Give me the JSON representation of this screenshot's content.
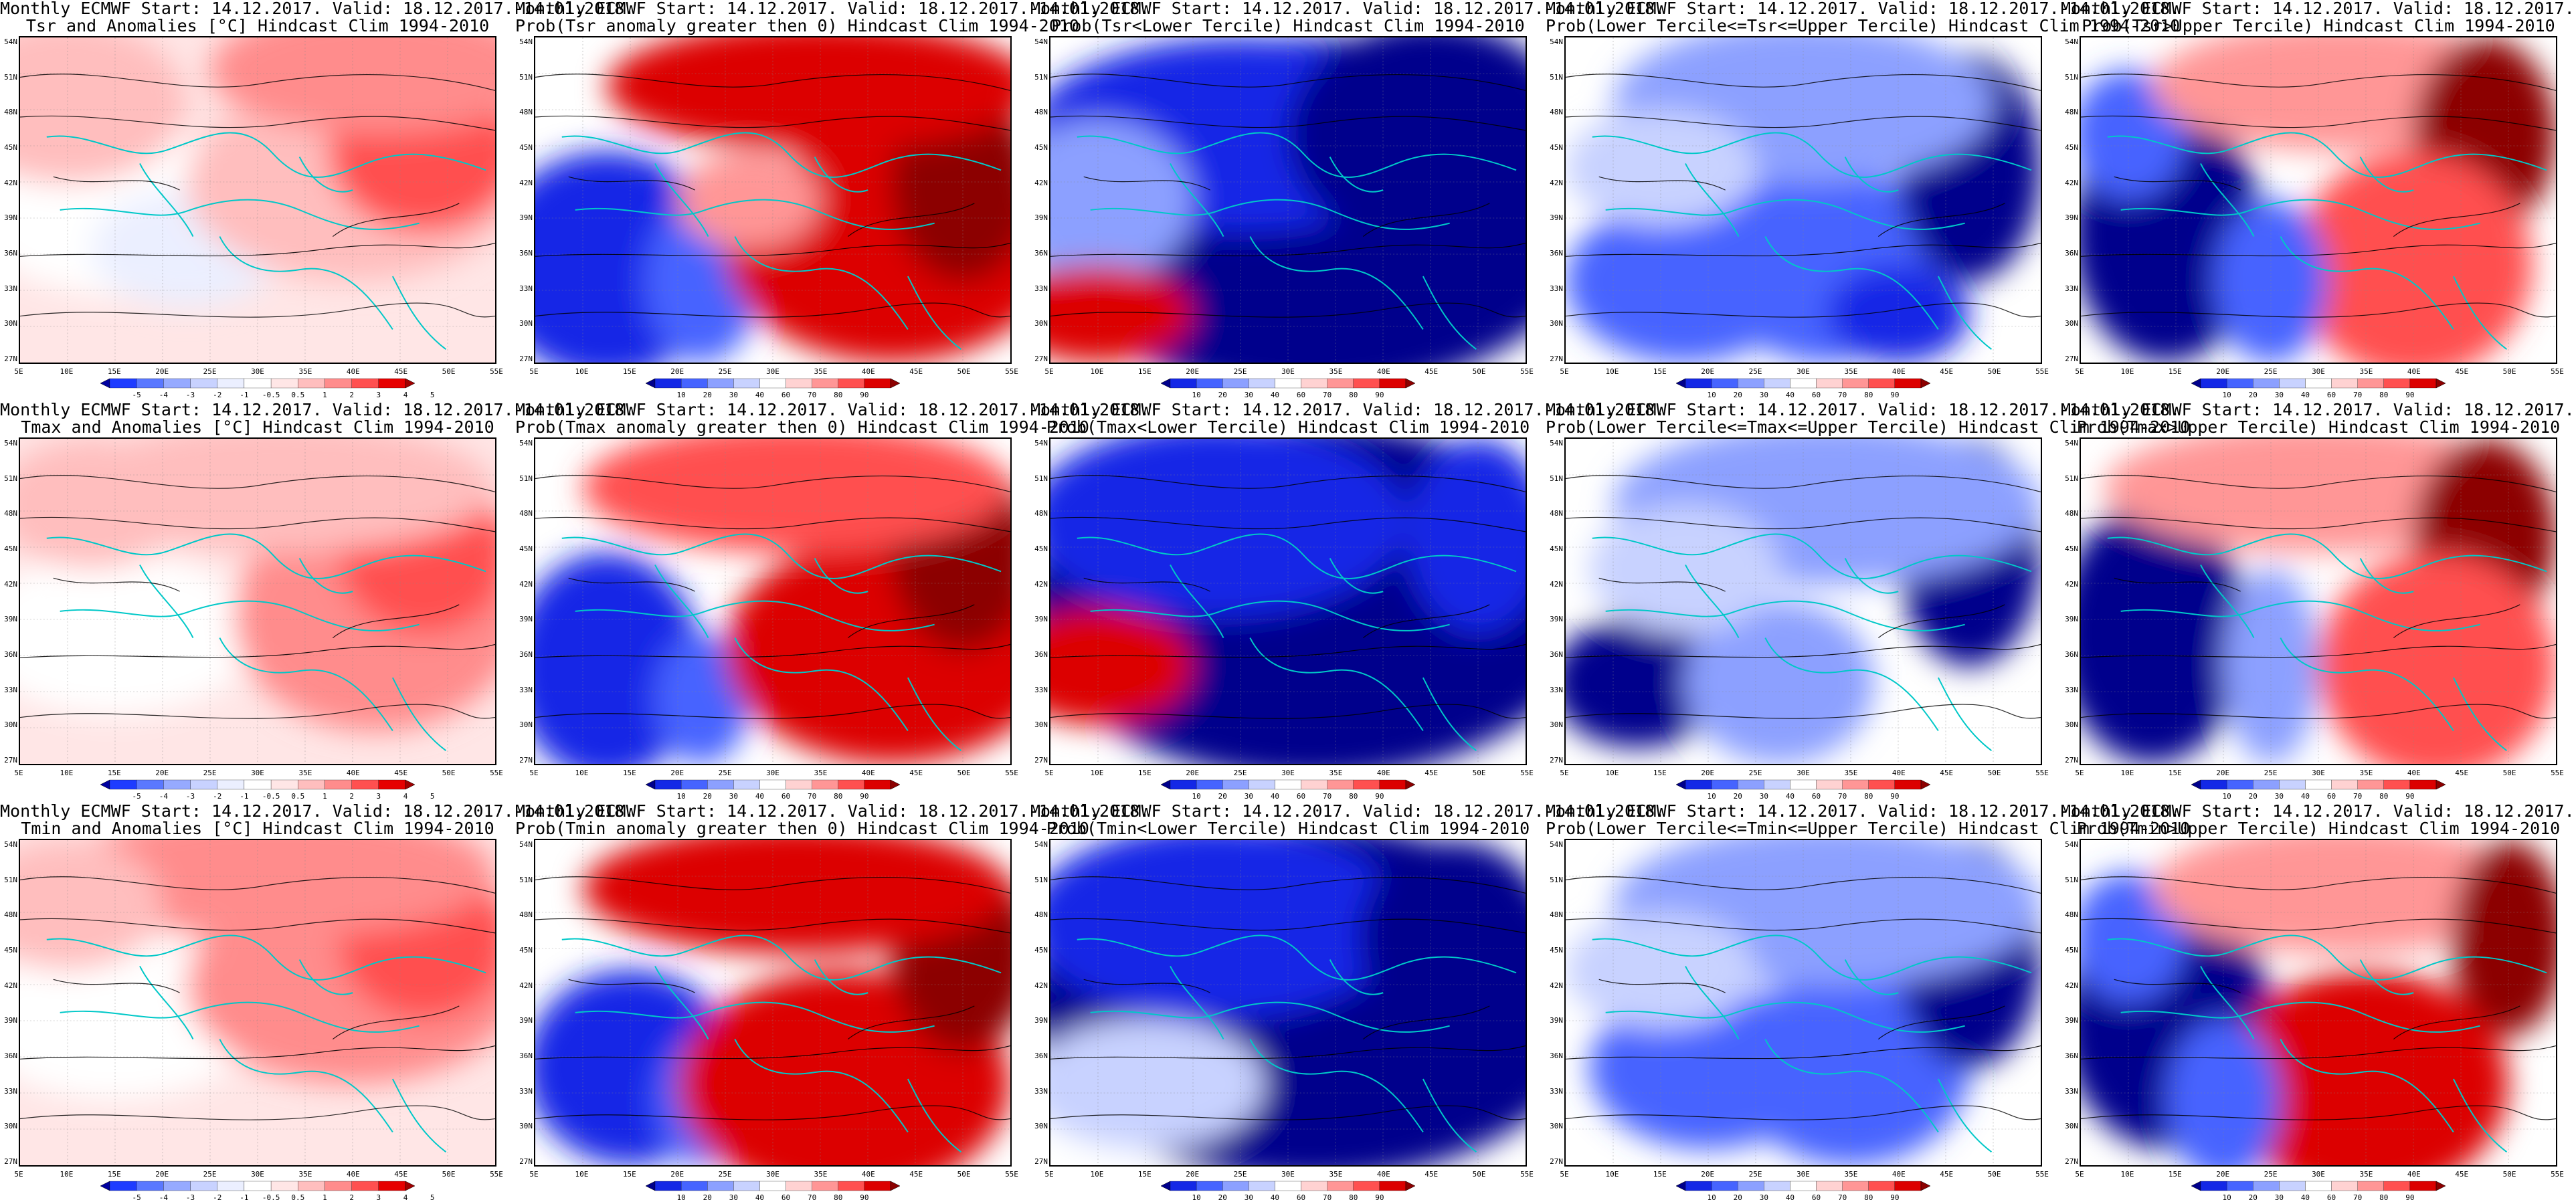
{
  "header": "Monthly ECMWF Start: 14.12.2017. Valid: 18.12.2017.-14.01.2018.",
  "lat_labels": [
    "54N",
    "51N",
    "48N",
    "45N",
    "42N",
    "39N",
    "36N",
    "33N",
    "30N",
    "27N"
  ],
  "lon_labels": [
    "5E",
    "10E",
    "15E",
    "20E",
    "25E",
    "30E",
    "35E",
    "40E",
    "45E",
    "50E",
    "55E"
  ],
  "anomaly_scale": [
    "-5",
    "-4",
    "-3",
    "-2",
    "-1",
    "-0.5",
    "0.5",
    "1",
    "2",
    "3",
    "4",
    "5"
  ],
  "prob_scale": [
    "10",
    "20",
    "30",
    "40",
    "60",
    "70",
    "80",
    "90"
  ],
  "colors": {
    "anomaly_ramp": [
      "#0000a0",
      "#1e3cff",
      "#5a78ff",
      "#96aaff",
      "#c8d2ff",
      "#ebefff",
      "#ffffff",
      "#ffe6e6",
      "#ffbebe",
      "#ff8c8c",
      "#ff5050",
      "#e60000",
      "#a00000"
    ],
    "prob_ramp": [
      "#00008c",
      "#1428e6",
      "#4664ff",
      "#8ca0ff",
      "#c8d2ff",
      "#ffffff",
      "#ffd2d2",
      "#ff9696",
      "#ff5050",
      "#dc0000",
      "#8c0000"
    ],
    "coastline": "#00c8c8",
    "contour": "#000000"
  },
  "panels": [
    {
      "row": 0,
      "col": 0,
      "kind": "anomaly",
      "title": "Tsr and Anomalies [°C] Hindcast Clim 1994-2010"
    },
    {
      "row": 0,
      "col": 1,
      "kind": "prob",
      "title": "Prob(Tsr anomaly greater then 0) Hindcast Clim 1994-2010"
    },
    {
      "row": 0,
      "col": 2,
      "kind": "prob",
      "title": "Prob(Tsr<Lower Tercile) Hindcast Clim 1994-2010"
    },
    {
      "row": 0,
      "col": 3,
      "kind": "prob",
      "title": "Prob(Lower Tercile<=Tsr<=Upper Tercile) Hindcast Clim 1994-2010"
    },
    {
      "row": 0,
      "col": 4,
      "kind": "prob",
      "title": "Prob(Tsr>Upper Tercile) Hindcast Clim 1994-2010"
    },
    {
      "row": 1,
      "col": 0,
      "kind": "anomaly",
      "title": "Tmax and Anomalies [°C] Hindcast Clim 1994-2010"
    },
    {
      "row": 1,
      "col": 1,
      "kind": "prob",
      "title": "Prob(Tmax anomaly greater then 0) Hindcast Clim 1994-2010"
    },
    {
      "row": 1,
      "col": 2,
      "kind": "prob",
      "title": "Prob(Tmax<Lower Tercile) Hindcast Clim 1994-2010"
    },
    {
      "row": 1,
      "col": 3,
      "kind": "prob",
      "title": "Prob(Lower Tercile<=Tmax<=Upper Tercile) Hindcast Clim 1994-2010"
    },
    {
      "row": 1,
      "col": 4,
      "kind": "prob",
      "title": "Prob(Tmax>Upper Tercile) Hindcast Clim 1994-2010"
    },
    {
      "row": 2,
      "col": 0,
      "kind": "anomaly",
      "title": "Tmin and Anomalies [°C] Hindcast Clim 1994-2010"
    },
    {
      "row": 2,
      "col": 1,
      "kind": "prob",
      "title": "Prob(Tmin anomaly greater then 0) Hindcast Clim 1994-2010"
    },
    {
      "row": 2,
      "col": 2,
      "kind": "prob",
      "title": "Prob(Tmin<Lower Tercile) Hindcast Clim 1994-2010"
    },
    {
      "row": 2,
      "col": 3,
      "kind": "prob",
      "title": "Prob(Lower Tercile<=Tmin<=Upper Tercile) Hindcast Clim 1994-2010"
    },
    {
      "row": 2,
      "col": 4,
      "kind": "prob",
      "title": "Prob(Tmin>Upper Tercile) Hindcast Clim 1994-2010"
    }
  ]
}
